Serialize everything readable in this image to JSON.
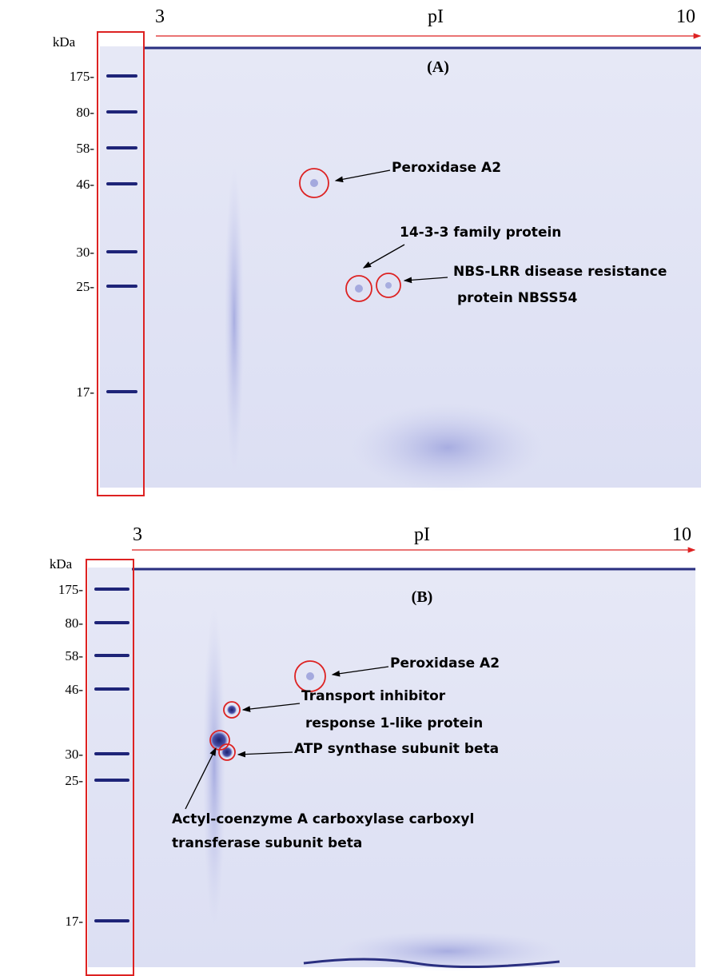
{
  "panels": [
    {
      "label": "(A)",
      "axis": {
        "start": "3",
        "title": "pI",
        "end": "10"
      },
      "unit": "kDa",
      "markers": [
        "175-",
        "80-",
        "58-",
        "46-",
        "30-",
        "25-",
        "17-"
      ],
      "annotations": [
        {
          "lines": [
            "Peroxidase A2"
          ]
        },
        {
          "lines": [
            "14-3-3 family protein"
          ]
        },
        {
          "lines": [
            "NBS-LRR disease resistance",
            "protein NBSS54"
          ]
        }
      ]
    },
    {
      "label": "(B)",
      "axis": {
        "start": "3",
        "title": "pI",
        "end": "10"
      },
      "unit": "kDa",
      "markers": [
        "175-",
        "80-",
        "58-",
        "46-",
        "30-",
        "25-",
        "17-"
      ],
      "annotations": [
        {
          "lines": [
            "Peroxidase A2"
          ]
        },
        {
          "lines": [
            "Transport inhibitor",
            "response 1-like protein"
          ]
        },
        {
          "lines": [
            "ATP synthase subunit beta"
          ]
        },
        {
          "lines": [
            "Actyl-coenzyme A carboxylase carboxyl",
            "transferase subunit beta"
          ]
        }
      ]
    }
  ]
}
